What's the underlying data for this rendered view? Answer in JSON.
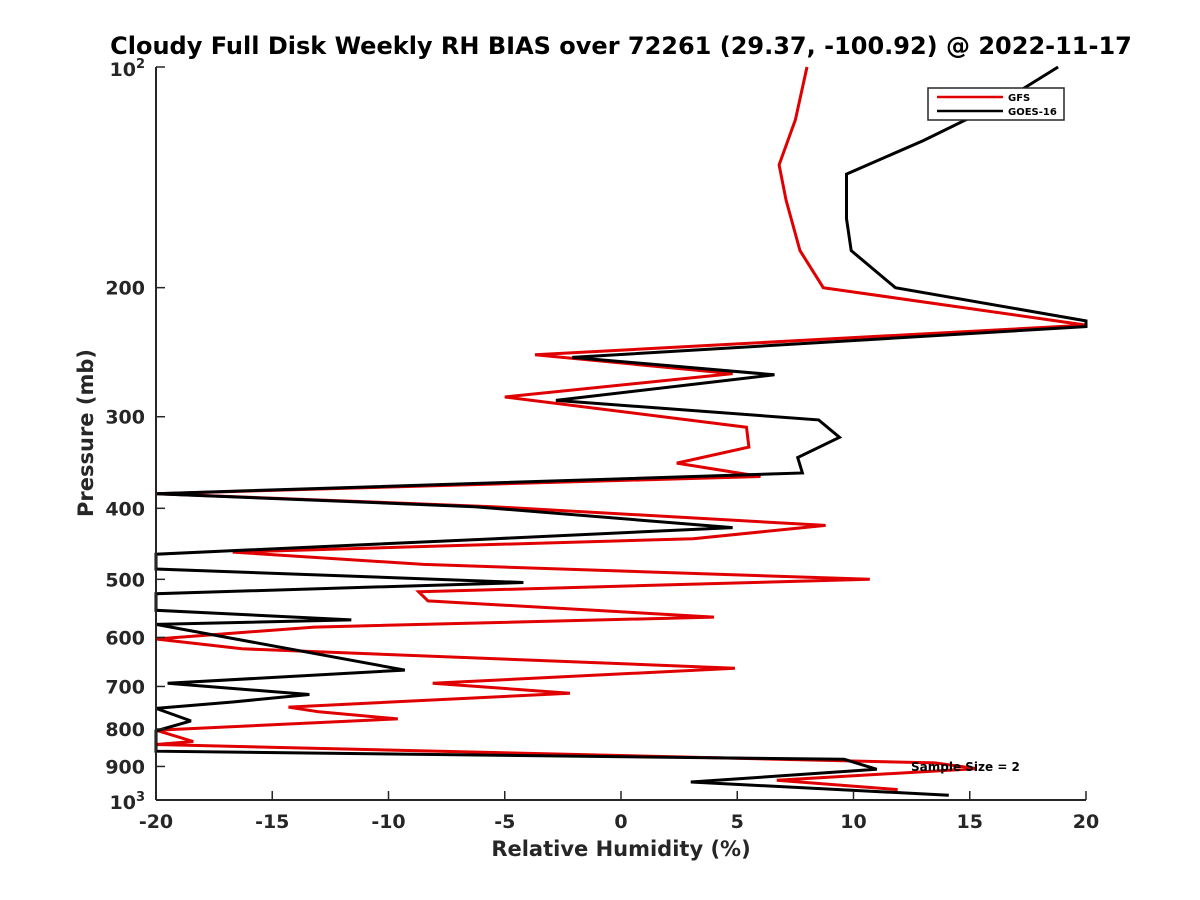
{
  "chart_data": {
    "type": "line",
    "title": "Cloudy Full Disk Weekly RH BIAS over 72261 (29.37, -100.92) @ 2022-11-17",
    "xlabel": "Relative Humidity (%)",
    "ylabel": "Pressure (mb)",
    "xlim": [
      -20,
      20
    ],
    "ylim": [
      100,
      1000
    ],
    "yscale": "log",
    "yreversed": true,
    "x_ticks": [
      -20,
      -15,
      -10,
      -5,
      0,
      5,
      10,
      15,
      20
    ],
    "x_tick_labels": [
      "-20",
      "-15",
      "-10",
      "-5",
      "0",
      "5",
      "10",
      "15",
      "20"
    ],
    "y_ticks": [
      100,
      200,
      300,
      400,
      500,
      600,
      700,
      800,
      900,
      1000
    ],
    "y_tick_labels_plain": [
      "",
      "200",
      "300",
      "400",
      "500",
      "600",
      "700",
      "800",
      "900",
      ""
    ],
    "y_tick_top": {
      "base": "10",
      "exp": "2"
    },
    "y_tick_bottom": {
      "base": "10",
      "exp": "3"
    },
    "legend": {
      "position": "top-right",
      "entries": [
        "GFS",
        "GOES-16"
      ]
    },
    "annotation": "Sample Size = 2",
    "series": [
      {
        "name": "GFS",
        "color": "#e00000",
        "points": [
          [
            8.0,
            100
          ],
          [
            7.5,
            118
          ],
          [
            6.8,
            136
          ],
          [
            7.1,
            152
          ],
          [
            7.7,
            178
          ],
          [
            8.7,
            200
          ],
          [
            20.0,
            225
          ],
          [
            -3.7,
            247
          ],
          [
            4.8,
            262
          ],
          [
            -5.0,
            282
          ],
          [
            5.4,
            310
          ],
          [
            5.5,
            330
          ],
          [
            2.4,
            347
          ],
          [
            6.0,
            362
          ],
          [
            -20.0,
            382
          ],
          [
            -5.5,
            398
          ],
          [
            8.8,
            422
          ],
          [
            3.1,
            440
          ],
          [
            -16.7,
            459
          ],
          [
            -8.5,
            477
          ],
          [
            10.7,
            500
          ],
          [
            -8.7,
            520
          ],
          [
            -8.3,
            535
          ],
          [
            4.0,
            563
          ],
          [
            -13.2,
            581
          ],
          [
            -20.0,
            603
          ],
          [
            -16.3,
            622
          ],
          [
            4.9,
            661
          ],
          [
            -8.1,
            693
          ],
          [
            -2.2,
            715
          ],
          [
            -14.3,
            747
          ],
          [
            -13.0,
            758
          ],
          [
            -9.6,
            775
          ],
          [
            -20.0,
            803
          ],
          [
            -18.4,
            832
          ],
          [
            -20.0,
            840
          ],
          [
            13.5,
            890
          ],
          [
            15.3,
            906
          ],
          [
            6.7,
            940
          ],
          [
            11.9,
            968
          ]
        ]
      },
      {
        "name": "GOES-16",
        "color": "#000000",
        "points": [
          [
            18.8,
            100
          ],
          [
            16.3,
            112
          ],
          [
            13.0,
            126
          ],
          [
            9.7,
            140
          ],
          [
            9.7,
            161
          ],
          [
            9.9,
            178
          ],
          [
            11.8,
            200
          ],
          [
            20.0,
            222
          ],
          [
            20.0,
            226
          ],
          [
            -2.1,
            249
          ],
          [
            6.6,
            263
          ],
          [
            -2.8,
            285
          ],
          [
            8.5,
            303
          ],
          [
            9.4,
            320
          ],
          [
            7.6,
            341
          ],
          [
            7.8,
            358
          ],
          [
            -20.0,
            382
          ],
          [
            -6.3,
            398
          ],
          [
            4.8,
            425
          ],
          [
            -5.4,
            440
          ],
          [
            -20.0,
            462
          ],
          [
            -20.0,
            484
          ],
          [
            -4.2,
            505
          ],
          [
            -20.0,
            523
          ],
          [
            -20.0,
            551
          ],
          [
            -11.6,
            568
          ],
          [
            -20.0,
            576
          ],
          [
            -9.3,
            665
          ],
          [
            -19.5,
            693
          ],
          [
            -13.4,
            718
          ],
          [
            -16.7,
            735
          ],
          [
            -20.0,
            750
          ],
          [
            -18.5,
            780
          ],
          [
            -20.0,
            805
          ],
          [
            -20.0,
            858
          ],
          [
            9.6,
            880
          ],
          [
            11.0,
            908
          ],
          [
            3.0,
            945
          ],
          [
            14.1,
            985
          ]
        ]
      }
    ]
  }
}
